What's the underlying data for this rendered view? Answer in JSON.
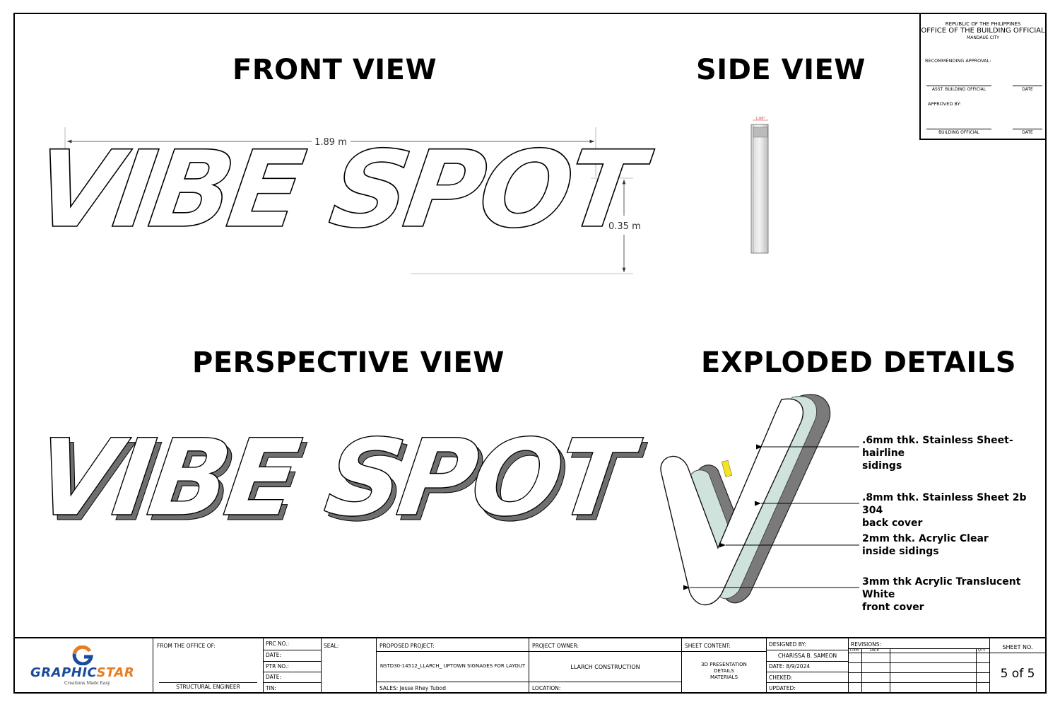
{
  "views": {
    "front": "FRONT VIEW",
    "side": "SIDE VIEW",
    "perspective": "PERSPECTIVE VIEW",
    "exploded": "EXPLODED DETAILS"
  },
  "sign_text": "VIBE SPOT",
  "dimensions": {
    "width": "1.89 m",
    "height": "0.35 m",
    "depth": "1.00\""
  },
  "approval_box": {
    "line1": "REPUBLIC OF THE PHILIPPINES",
    "line2": "OFFICE OF THE BUILDING OFFICIAL",
    "line3": "MANDAUE CITY",
    "recommending": "RECOMMENDING APPROVAL:",
    "asst_official": "ASST. BUILDING OFFICIAL",
    "date1": "DATE",
    "approved_by": "APPROVED BY:",
    "building_official": "BUILDING OFFICIAL",
    "date2": "DATE"
  },
  "callouts": [
    {
      "line1": ".6mm thk. Stainless Sheet-hairline",
      "line2": "sidings"
    },
    {
      "line1": ".8mm thk. Stainless Sheet 2b 304",
      "line2": "back cover"
    },
    {
      "line1": "2mm thk. Acrylic Clear",
      "line2": "inside sidings"
    },
    {
      "line1": "3mm thk Acrylic Translucent White",
      "line2": "front cover"
    }
  ],
  "colors": {
    "logo_blue": "#1a4c9c",
    "logo_orange": "#e87d1e",
    "led_yellow": "#f5e51b",
    "steel_grey": "#7a7a7a"
  },
  "title_block": {
    "logo_word_1": "GRAPHIC",
    "logo_word_2": "STAR",
    "logo_tagline": "Creations Made Easy",
    "from_office": "FROM THE OFFICE OF:",
    "structural_engineer": "STRUCTURAL ENGINEER",
    "prc_no": "PRC NO.:",
    "date_a": "DATE:",
    "ptr_no": "PTR NO.:",
    "date_b": "DATE:",
    "tin": "TIN:",
    "seal": "SEAL:",
    "proposed_project": "PROPOSED PROJECT:",
    "project_name": "NSTD30-14512_LLARCH_ UPTOWN SIGNAGES FOR LAYOUT",
    "sales": "SALES: Jesse Rhey Tubod",
    "project_owner": "PROJECT OWNER:",
    "owner_name": "LLARCH CONSTRUCTION",
    "location": "LOCATION:",
    "sheet_content": "SHEET CONTENT:",
    "content_1": "3D PRESENTATION",
    "content_2": "DETAILS",
    "content_3": "MATERIALS",
    "designed_by": "DESIGNED BY:",
    "designer": "CHARISSA B. SAMEON",
    "date_designed": "DATE: 8/9/2024",
    "checked": "CHEKED:",
    "updated": "UPDATED:",
    "revisions": "REVISIONS:",
    "item": "ITEM",
    "rev_date": "DATE",
    "qty": "QTY.",
    "sheet_no_label": "SHEET NO.",
    "sheet_no": "5 of 5"
  }
}
